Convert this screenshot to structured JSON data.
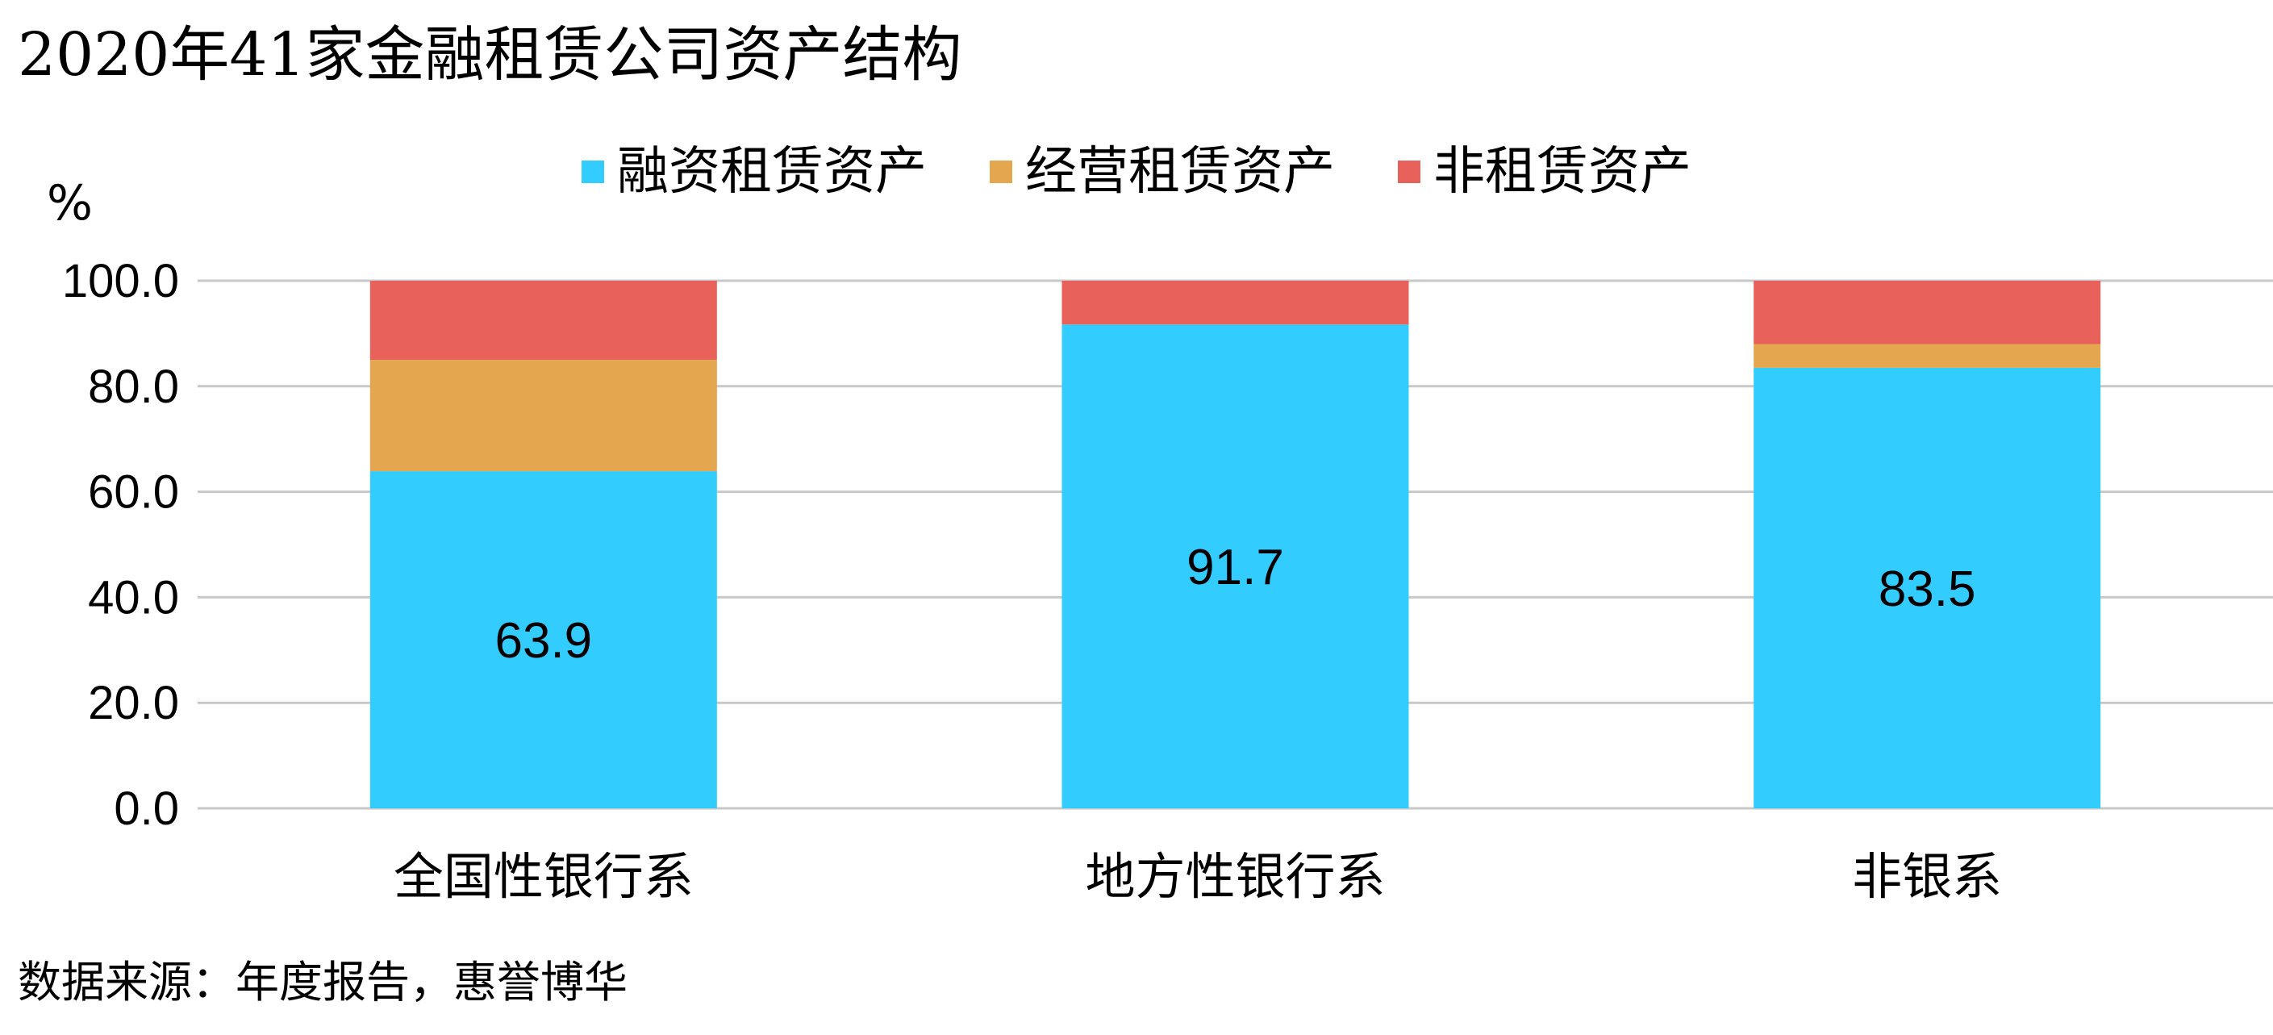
{
  "title": "2020年41家金融租赁公司资产结构",
  "unit_label": "%",
  "source": "数据来源：年度报告，惠誉博华",
  "legend": [
    {
      "label": "融资租赁资产",
      "color": "#33ccff"
    },
    {
      "label": "经营租赁资产",
      "color": "#e4a64f"
    },
    {
      "label": "非租赁资产",
      "color": "#e8615a"
    }
  ],
  "chart_data": {
    "type": "bar",
    "stacked": true,
    "categories": [
      "全国性银行系",
      "地方性银行系",
      "非银系"
    ],
    "series": [
      {
        "name": "融资租赁资产",
        "color": "#33ccff",
        "values": [
          63.9,
          91.7,
          83.5
        ],
        "show_labels": true
      },
      {
        "name": "经营租赁资产",
        "color": "#e4a64f",
        "values": [
          21.1,
          0.0,
          4.5
        ],
        "show_labels": false
      },
      {
        "name": "非租赁资产",
        "color": "#e8615a",
        "values": [
          15.0,
          8.3,
          12.0
        ],
        "show_labels": false
      }
    ],
    "ylim": [
      0,
      100
    ],
    "yticks": [
      "0.0",
      "20.0",
      "40.0",
      "60.0",
      "80.0",
      "100.0"
    ],
    "ylabel": "%",
    "grid": true,
    "legend_position": "top"
  }
}
